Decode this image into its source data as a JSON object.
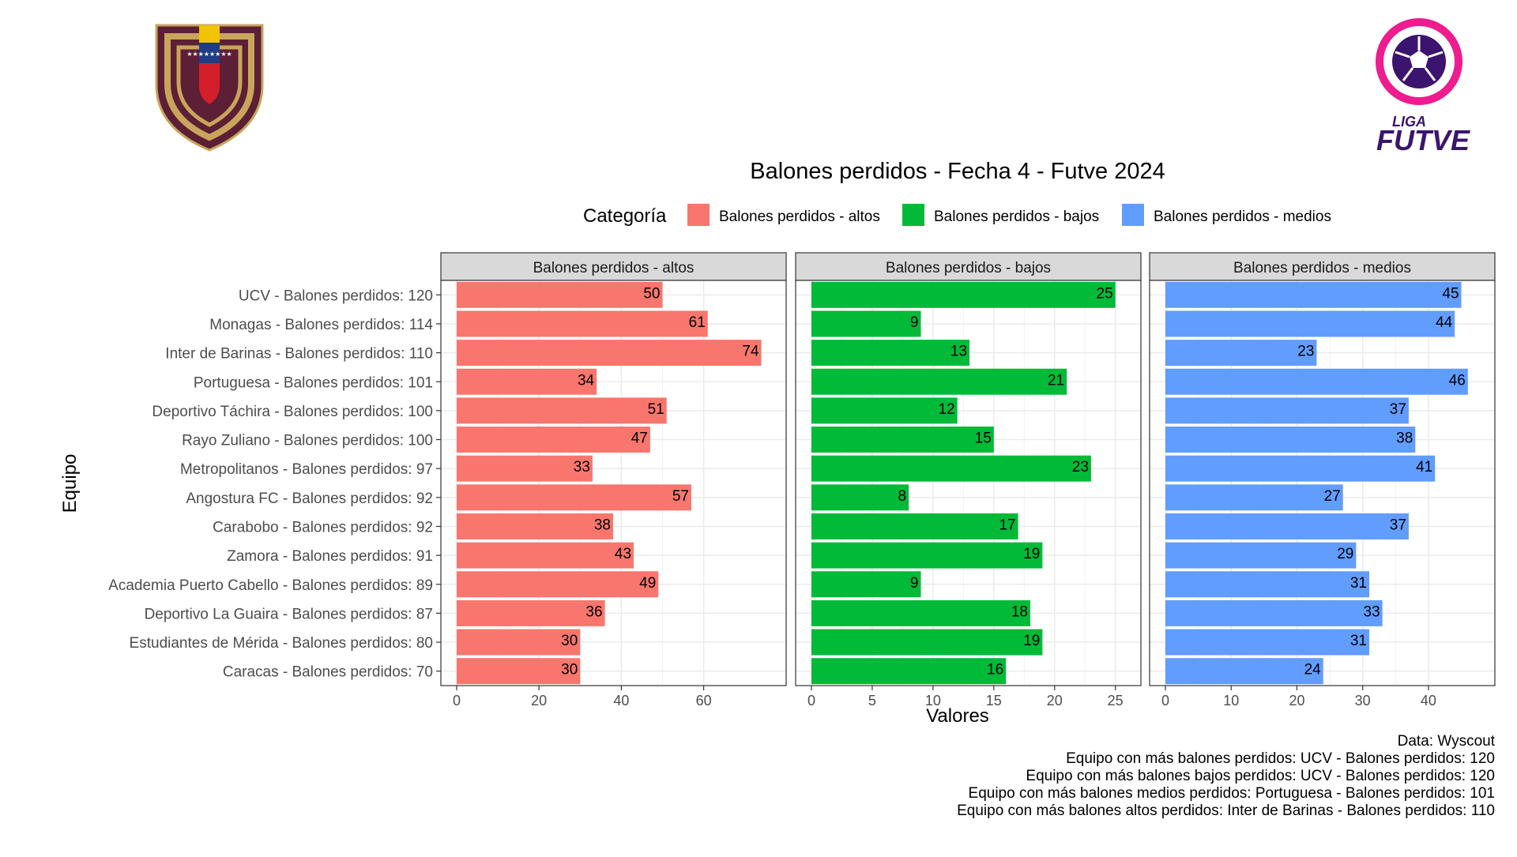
{
  "logos": {
    "left": {
      "name": "federacion-venezolana-crest",
      "colors": {
        "outer": "#5c1f35",
        "ring": "#c9a55c",
        "yellow": "#f2c300",
        "blue": "#1f3d86",
        "red": "#d41f2b"
      }
    },
    "right": {
      "name": "liga-futve-logo",
      "line1": "LIGA",
      "line2": "FUTVE",
      "colors": {
        "ring": "#ee1c8e",
        "ball": "#3b1470",
        "text": "#3b1470"
      }
    }
  },
  "chart_data": {
    "type": "bar",
    "orientation": "horizontal",
    "title": "Balones perdidos - Fecha 4 - Futve 2024",
    "xlabel": "Valores",
    "ylabel": "Equipo",
    "grid": true,
    "legend": {
      "title": "Categoría",
      "placement": "top",
      "items": [
        {
          "label": "Balones perdidos - altos",
          "color": "#f8766d"
        },
        {
          "label": "Balones perdidos - bajos",
          "color": "#00ba38"
        },
        {
          "label": "Balones perdidos - medios",
          "color": "#619cff"
        }
      ]
    },
    "categories": [
      "UCV - Balones perdidos: 120",
      "Monagas - Balones perdidos: 114",
      "Inter de Barinas - Balones perdidos: 110",
      "Portuguesa - Balones perdidos: 101",
      "Deportivo Táchira - Balones perdidos: 100",
      "Rayo Zuliano - Balones perdidos: 100",
      "Metropolitanos - Balones perdidos: 97",
      "Angostura FC - Balones perdidos: 92",
      "Carabobo - Balones perdidos: 92",
      "Zamora - Balones perdidos: 91",
      "Academia Puerto Cabello - Balones perdidos: 89",
      "Deportivo La Guaira - Balones perdidos: 87",
      "Estudiantes de Mérida - Balones perdidos: 80",
      "Caracas - Balones perdidos: 70"
    ],
    "panels": [
      {
        "name": "Balones perdidos - altos",
        "color": "#f8766d",
        "xlim": [
          0,
          76.2
        ],
        "ticks": [
          0,
          20,
          40,
          60
        ],
        "values": [
          50,
          61,
          74,
          34,
          51,
          47,
          33,
          57,
          38,
          43,
          49,
          36,
          30,
          30
        ]
      },
      {
        "name": "Balones perdidos - bajos",
        "color": "#00ba38",
        "xlim": [
          0,
          25.8
        ],
        "ticks": [
          0,
          5,
          10,
          15,
          20,
          25
        ],
        "values": [
          25,
          9,
          13,
          21,
          12,
          15,
          23,
          8,
          17,
          19,
          9,
          18,
          19,
          16
        ]
      },
      {
        "name": "Balones perdidos - medios",
        "color": "#619cff",
        "xlim": [
          0,
          47.7
        ],
        "ticks": [
          0,
          10,
          20,
          30,
          40
        ],
        "values": [
          45,
          44,
          23,
          46,
          37,
          38,
          41,
          27,
          37,
          29,
          31,
          33,
          31,
          24
        ]
      }
    ],
    "caption": [
      "Data: Wyscout ",
      "Equipo con más balones perdidos: UCV - Balones perdidos: 120",
      "Equipo con más balones bajos perdidos: UCV - Balones perdidos: 120",
      "Equipo con más balones medios perdidos: Portuguesa - Balones perdidos: 101",
      "Equipo con más balones altos perdidos: Inter de Barinas - Balones perdidos: 110"
    ]
  }
}
